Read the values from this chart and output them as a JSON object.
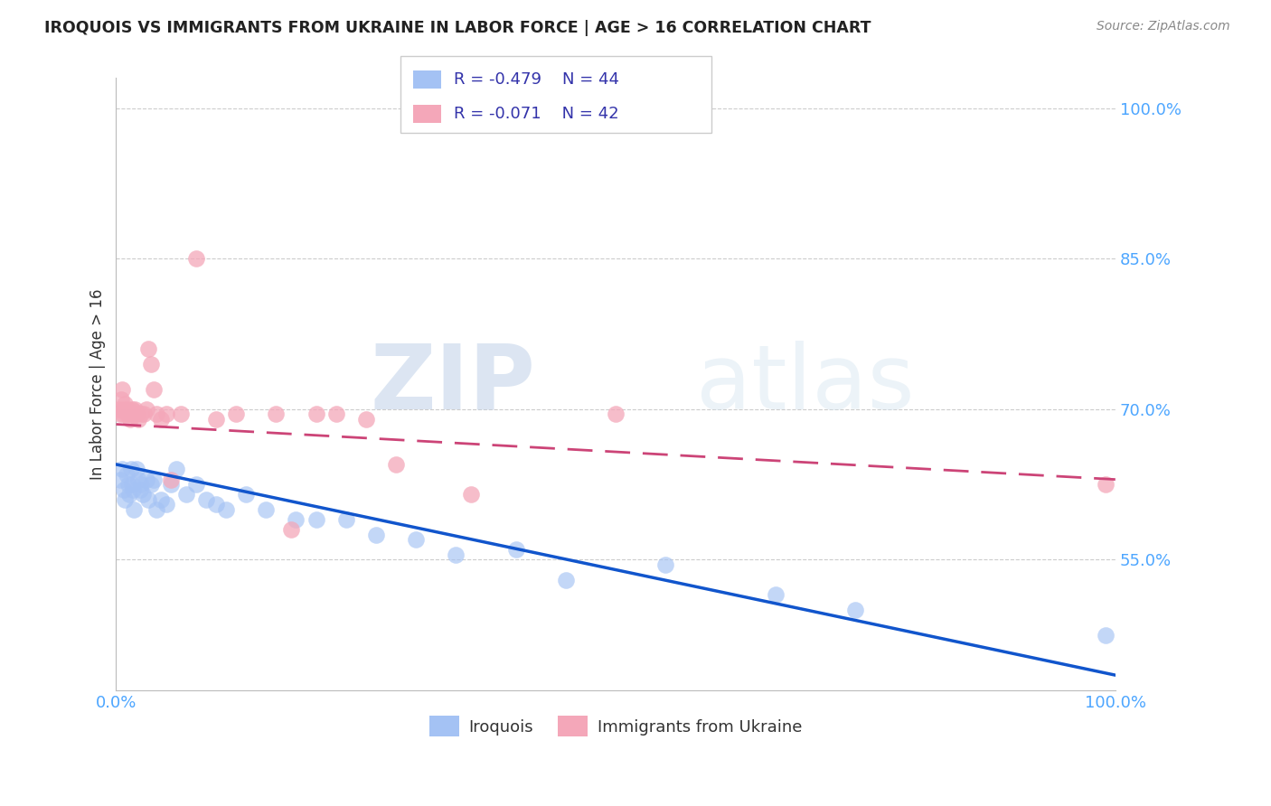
{
  "title": "IROQUOIS VS IMMIGRANTS FROM UKRAINE IN LABOR FORCE | AGE > 16 CORRELATION CHART",
  "source": "Source: ZipAtlas.com",
  "ylabel": "In Labor Force | Age > 16",
  "xlim": [
    0.0,
    1.0
  ],
  "ylim": [
    0.42,
    1.03
  ],
  "x_ticks": [
    0.0,
    0.2,
    0.4,
    0.6,
    0.8,
    1.0
  ],
  "x_tick_labels": [
    "0.0%",
    "",
    "",
    "",
    "",
    "100.0%"
  ],
  "y_ticks": [
    0.55,
    0.7,
    0.85,
    1.0
  ],
  "y_tick_labels": [
    "55.0%",
    "70.0%",
    "85.0%",
    "100.0%"
  ],
  "legend_R1": "-0.479",
  "legend_N1": "44",
  "legend_R2": "-0.071",
  "legend_N2": "42",
  "color_iroquois": "#a4c2f4",
  "color_ukraine": "#f4a7b9",
  "color_iroquois_line": "#1155cc",
  "color_ukraine_line": "#cc4477",
  "background_color": "#ffffff",
  "grid_color": "#cccccc",
  "watermark_zip": "ZIP",
  "watermark_atlas": "atlas",
  "iroquois_x": [
    0.004,
    0.006,
    0.008,
    0.009,
    0.01,
    0.012,
    0.013,
    0.015,
    0.016,
    0.017,
    0.018,
    0.02,
    0.022,
    0.024,
    0.025,
    0.027,
    0.03,
    0.032,
    0.035,
    0.038,
    0.04,
    0.045,
    0.05,
    0.055,
    0.06,
    0.07,
    0.08,
    0.09,
    0.1,
    0.11,
    0.13,
    0.15,
    0.18,
    0.2,
    0.23,
    0.26,
    0.3,
    0.34,
    0.4,
    0.45,
    0.55,
    0.66,
    0.74,
    0.99
  ],
  "iroquois_y": [
    0.63,
    0.64,
    0.62,
    0.61,
    0.635,
    0.625,
    0.615,
    0.64,
    0.625,
    0.62,
    0.6,
    0.64,
    0.63,
    0.62,
    0.625,
    0.615,
    0.63,
    0.61,
    0.625,
    0.63,
    0.6,
    0.61,
    0.605,
    0.625,
    0.64,
    0.615,
    0.625,
    0.61,
    0.605,
    0.6,
    0.615,
    0.6,
    0.59,
    0.59,
    0.59,
    0.575,
    0.57,
    0.555,
    0.56,
    0.53,
    0.545,
    0.515,
    0.5,
    0.475
  ],
  "ukraine_x": [
    0.003,
    0.004,
    0.005,
    0.006,
    0.007,
    0.008,
    0.009,
    0.01,
    0.011,
    0.012,
    0.013,
    0.014,
    0.015,
    0.016,
    0.017,
    0.018,
    0.019,
    0.02,
    0.022,
    0.025,
    0.028,
    0.03,
    0.032,
    0.035,
    0.038,
    0.04,
    0.045,
    0.05,
    0.055,
    0.065,
    0.08,
    0.1,
    0.12,
    0.16,
    0.2,
    0.25,
    0.175,
    0.22,
    0.28,
    0.355,
    0.5,
    0.99
  ],
  "ukraine_y": [
    0.7,
    0.695,
    0.71,
    0.72,
    0.695,
    0.7,
    0.705,
    0.695,
    0.7,
    0.695,
    0.695,
    0.69,
    0.695,
    0.7,
    0.695,
    0.698,
    0.7,
    0.695,
    0.69,
    0.695,
    0.695,
    0.7,
    0.76,
    0.745,
    0.72,
    0.695,
    0.69,
    0.695,
    0.63,
    0.695,
    0.85,
    0.69,
    0.695,
    0.695,
    0.695,
    0.69,
    0.58,
    0.695,
    0.645,
    0.615,
    0.695,
    0.625
  ],
  "iroq_line_x0": 0.0,
  "iroq_line_y0": 0.645,
  "iroq_line_x1": 1.0,
  "iroq_line_y1": 0.435,
  "ukr_line_x0": 0.0,
  "ukr_line_y0": 0.685,
  "ukr_line_x1": 1.0,
  "ukr_line_y1": 0.63
}
